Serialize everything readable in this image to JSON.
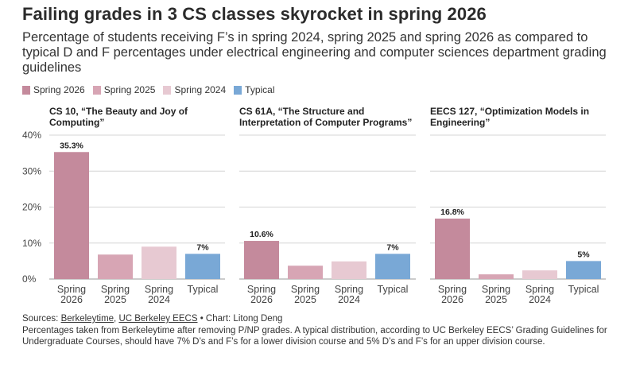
{
  "title": "Failing grades in 3 CS classes skyrocket in spring 2026",
  "subtitle": "Percentage of students receiving F’s in spring 2024, spring 2025 and spring 2026 as compared to typical D and F percentages under electrical engineering and computer sciences department grading guidelines",
  "legend": [
    {
      "label": "Spring 2026",
      "color": "#c48a9c"
    },
    {
      "label": "Spring 2025",
      "color": "#d7a5b4"
    },
    {
      "label": "Spring 2024",
      "color": "#e7c9d2"
    },
    {
      "label": "Typical",
      "color": "#79a8d6"
    }
  ],
  "footer": {
    "sources_prefix": "Sources: ",
    "source1": "Berkeleytime",
    "sep": ", ",
    "source2": "UC Berkeley EECS",
    "credit": " • Chart: Litong Deng",
    "note": "Percentages taken from Berkeleytime after removing P/NP grades. A typical distribution, according to UC Berkeley EECS’ Grading Guidelines for Undergraduate Courses, should have 7% D’s and F’s for a lower division course and 5% D’s and F’s for an upper division course."
  },
  "chart_data": [
    {
      "type": "bar",
      "title": "CS 10, “The Beauty and Joy of Computing”",
      "categories": [
        "Spring 2026",
        "Spring 2025",
        "Spring 2024",
        "Typical"
      ],
      "values": [
        35.3,
        6.8,
        9.0,
        7
      ],
      "data_labels": [
        "35.3%",
        "",
        "",
        "7%"
      ],
      "ylim": [
        0,
        40
      ],
      "yticks": [
        "0%",
        "10%",
        "20%",
        "30%",
        "40%"
      ],
      "grid": true
    },
    {
      "type": "bar",
      "title": "CS 61A, “The Structure and Interpretation of Computer Programs”",
      "categories": [
        "Spring 2026",
        "Spring 2025",
        "Spring 2024",
        "Typical"
      ],
      "values": [
        10.6,
        3.7,
        4.9,
        7
      ],
      "data_labels": [
        "10.6%",
        "",
        "",
        "7%"
      ],
      "ylim": [
        0,
        40
      ],
      "grid": true
    },
    {
      "type": "bar",
      "title": "EECS 127, “Optimization Models in Engineering”",
      "categories": [
        "Spring 2026",
        "Spring 2025",
        "Spring 2024",
        "Typical"
      ],
      "values": [
        16.8,
        1.3,
        2.4,
        5
      ],
      "data_labels": [
        "16.8%",
        "",
        "",
        "5%"
      ],
      "ylim": [
        0,
        40
      ],
      "grid": true
    }
  ],
  "colors": {
    "spring2026": "#c48a9c",
    "spring2025": "#d7a5b4",
    "spring2024": "#e7c9d2",
    "typical": "#79a8d6",
    "grid": "#d4d4d4"
  }
}
